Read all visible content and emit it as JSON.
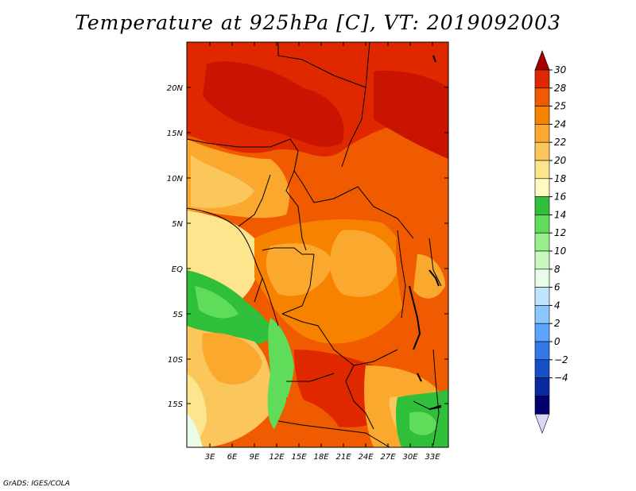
{
  "title": "Temperature at 925hPa [C], VT: 2019092003",
  "credit": "GrADS: IGES/COLA",
  "axes": {
    "lat_labels": [
      "20N",
      "15N",
      "10N",
      "5N",
      "EQ",
      "5S",
      "10S",
      "15S"
    ],
    "lon_labels": [
      "3E",
      "6E",
      "9E",
      "12E",
      "15E",
      "18E",
      "21E",
      "24E",
      "27E",
      "30E",
      "33E"
    ]
  },
  "colorbar": {
    "labels": [
      "30",
      "28",
      "25",
      "24",
      "22",
      "20",
      "18",
      "16",
      "14",
      "12",
      "10",
      "8",
      "6",
      "4",
      "2",
      "0",
      "−2",
      "−4"
    ],
    "colors": [
      "#a50000",
      "#e02800",
      "#f05a00",
      "#f78200",
      "#faa82e",
      "#fbc65c",
      "#fde58e",
      "#fff8c0",
      "#2fbf3a",
      "#5fdc5a",
      "#99ee8c",
      "#c8f8c0",
      "#e8fce8",
      "#c0e4ff",
      "#8cc6ff",
      "#5aa4ff",
      "#3278e6",
      "#1450c8",
      "#0a28a0",
      "#000070",
      "#d8d8f8"
    ]
  }
}
